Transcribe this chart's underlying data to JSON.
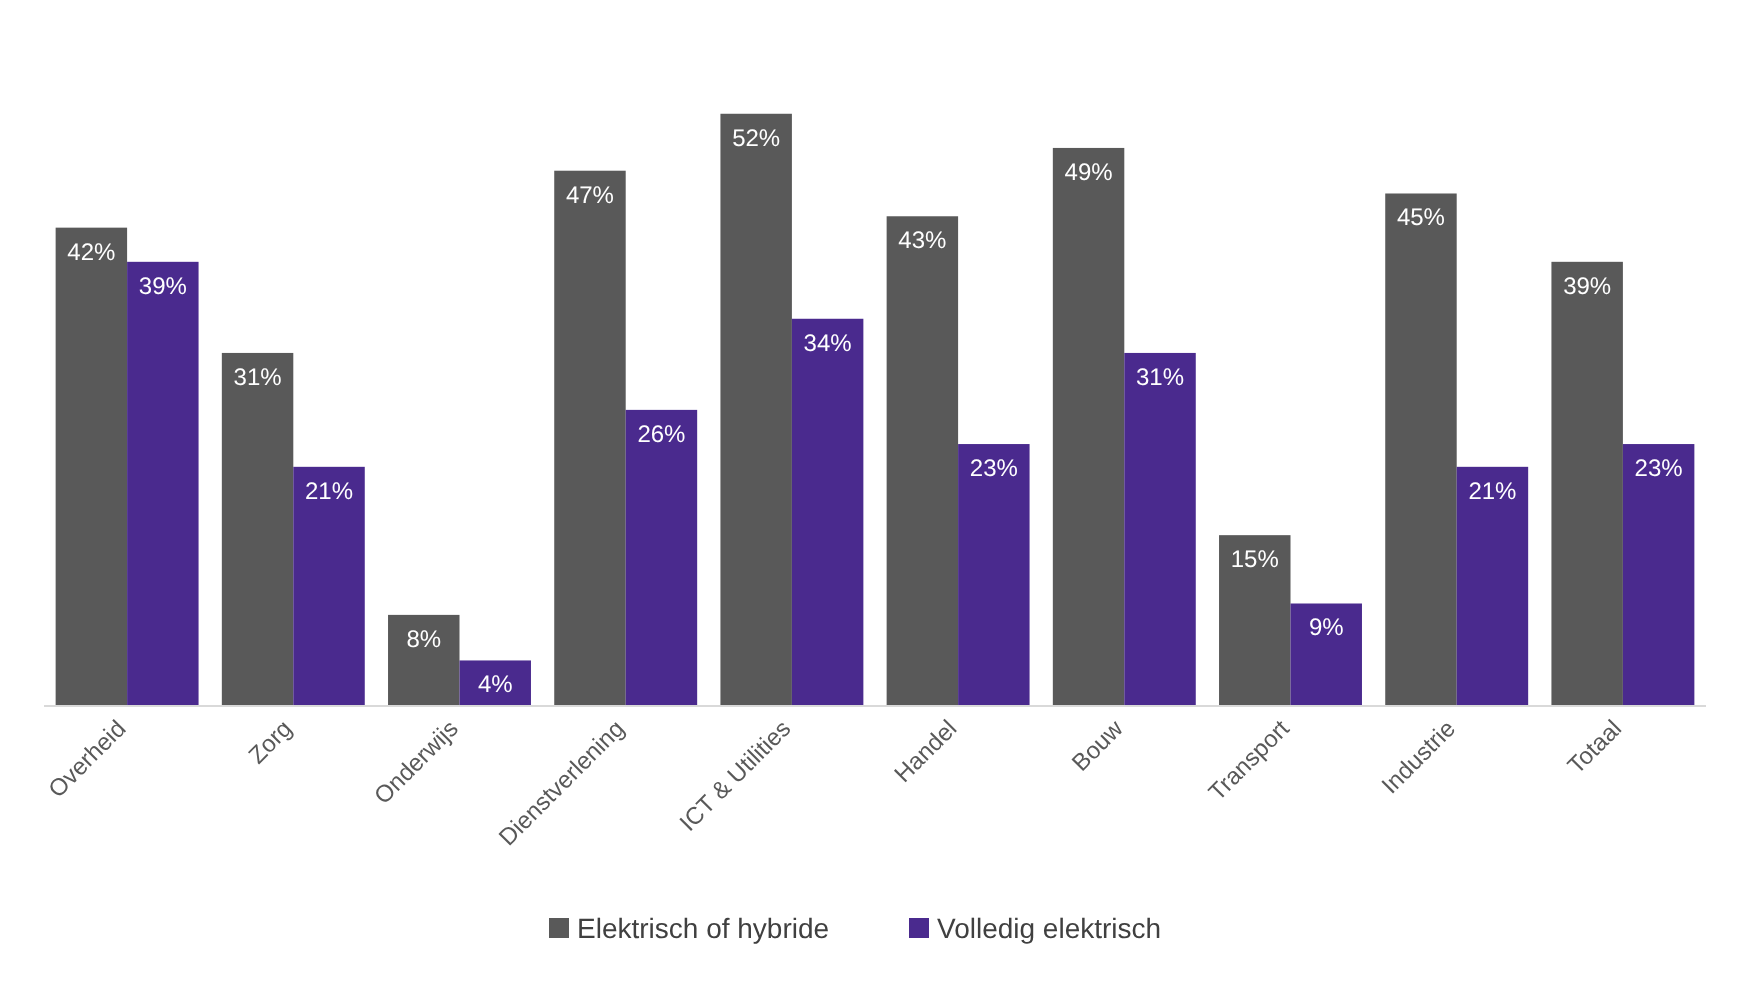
{
  "chart_data": {
    "type": "bar",
    "categories": [
      "Overheid",
      "Zorg",
      "Onderwijs",
      "Dienstverlening",
      "ICT & Utilities",
      "Handel",
      "Bouw",
      "Transport",
      "Industrie",
      "Totaal"
    ],
    "series": [
      {
        "name": "Elektrisch of hybride",
        "color": "#595959",
        "values": [
          42,
          31,
          8,
          47,
          52,
          43,
          49,
          15,
          45,
          39
        ],
        "value_labels": [
          "42%",
          "31%",
          "8%",
          "47%",
          "52%",
          "43%",
          "49%",
          "15%",
          "45%",
          "39%"
        ]
      },
      {
        "name": "Volledig elektrisch",
        "color": "#4a2a8e",
        "values": [
          39,
          21,
          4,
          26,
          34,
          23,
          31,
          9,
          21,
          23
        ],
        "value_labels": [
          "39%",
          "21%",
          "4%",
          "26%",
          "34%",
          "23%",
          "31%",
          "9%",
          "21%",
          "23%"
        ]
      }
    ],
    "legend": "bottom"
  }
}
